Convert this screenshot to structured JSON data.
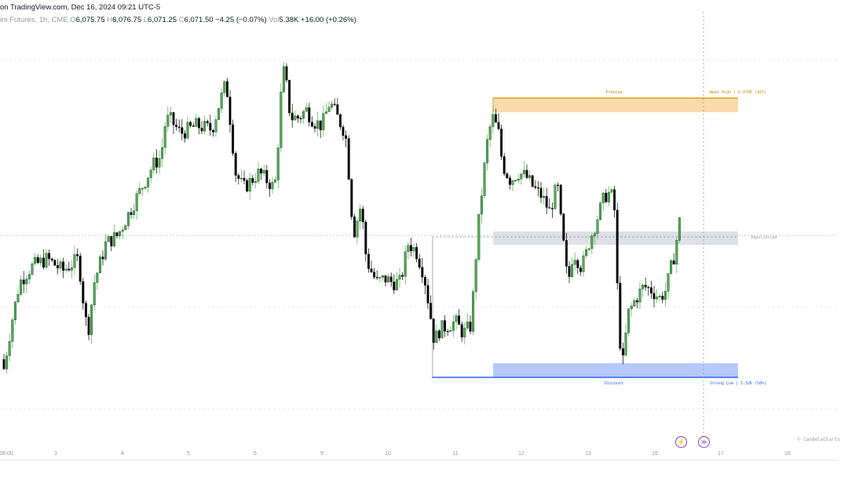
{
  "header": {
    "title": "on TradingView.com, Dec 16, 2024 09:21 UTC-5"
  },
  "legend": {
    "symbol": "ini Futures, 1h, CME",
    "open_label": "O",
    "open": "6,075.75",
    "high_label": "H",
    "high": "6,076.75",
    "low_label": "L",
    "low": "6,071.25",
    "close_label": "C",
    "close": "6,071.50",
    "change": "−4.25 (−0.07%)",
    "vol_label": "Vol",
    "volume": "5.38K",
    "vol_change": "+16.00 (+0.26%)"
  },
  "zones": {
    "premium": {
      "label": "Premium",
      "right_label": "Week High | 6.078K (42%)",
      "color": "#f5a623"
    },
    "equilibrium": {
      "label": "Equilibrium",
      "color": "#b2b5be"
    },
    "discount": {
      "label": "Discount",
      "right_label": "Strong Low | 5.32K (58%)",
      "color": "#2962ff"
    }
  },
  "credit": "© CandelaCharts",
  "buttons": {
    "lightning": "⚡",
    "forward": "≫"
  },
  "colors": {
    "up": "#4caf50",
    "down": "#000000",
    "grid": "#e0e3eb"
  },
  "chart_data": {
    "type": "candlestick",
    "x_ticks": [
      "06:00",
      "3",
      "4",
      "5",
      "6",
      "9",
      "10",
      "11",
      "12",
      "13",
      "16",
      "17",
      "18"
    ],
    "current_price": 6071.5,
    "closes": [
      6029,
      6044,
      6056.5,
      6061.5,
      6064,
      6060.25,
      6064,
      6046.5,
      6040.25,
      6056.5,
      6069,
      6071.5,
      6079,
      6086.5,
      6094,
      6096.5,
      6106.5,
      6109,
      6104,
      6106.5,
      6105.25,
      6114,
      6120.25,
      6104,
      6091.5,
      6086.5,
      6089,
      6091.5,
      6089,
      6086.5,
      6104,
      6125.25,
      6119,
      6109,
      6109,
      6111.5,
      6107.75,
      6106.5,
      6114,
      6109,
      6104,
      6089,
      6071.5,
      6081.5,
      6066.5,
      6061.5,
      6056.5,
      6057.75,
      6056.5,
      6056.5,
      6069,
      6066.5,
      6059,
      6046.5,
      6037.75,
      6041.5,
      6042.75,
      6044,
      6040.25,
      6042.75,
      6071.5,
      6089,
      6104,
      6109,
      6104,
      6094,
      6089,
      6091.5,
      6090.25,
      6086.5,
      6084,
      6079,
      6087.75,
      6074,
      6064,
      6055.25,
      6066.5,
      6061.5,
      6064,
      6069,
      6076.5,
      6084,
      6085.25,
      6079,
      6041.5,
      6030.25,
      6046.5,
      6051.5,
      6055.25,
      6054,
      6051.5,
      6054,
      6061.5,
      6066.5,
      6076.5,
      6071.5
    ]
  }
}
